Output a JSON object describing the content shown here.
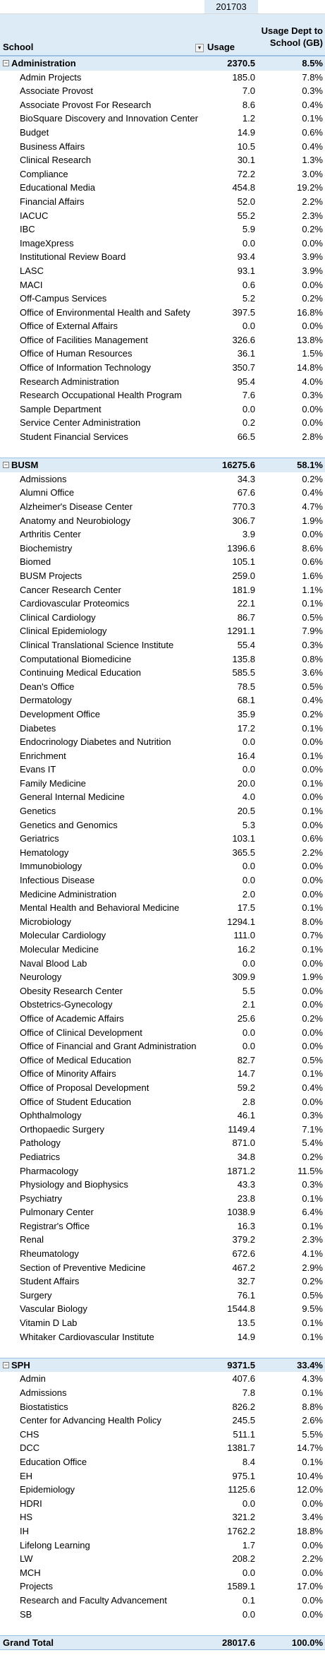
{
  "period": "201703",
  "header": {
    "school_label": "School",
    "usage_label": "Usage",
    "pct_label": "Usage Dept to School (GB)"
  },
  "departments": [
    {
      "name": "Administration",
      "usage": "2370.5",
      "pct": "8.5%",
      "items": [
        {
          "name": "Admin Projects",
          "usage": "185.0",
          "pct": "7.8%"
        },
        {
          "name": "Associate Provost",
          "usage": "7.0",
          "pct": "0.3%"
        },
        {
          "name": "Associate Provost For Research",
          "usage": "8.6",
          "pct": "0.4%"
        },
        {
          "name": "BioSquare Discovery and Innovation Center",
          "usage": "1.2",
          "pct": "0.1%"
        },
        {
          "name": "Budget",
          "usage": "14.9",
          "pct": "0.6%"
        },
        {
          "name": "Business Affairs",
          "usage": "10.5",
          "pct": "0.4%"
        },
        {
          "name": "Clinical Research",
          "usage": "30.1",
          "pct": "1.3%"
        },
        {
          "name": "Compliance",
          "usage": "72.2",
          "pct": "3.0%"
        },
        {
          "name": "Educational Media",
          "usage": "454.8",
          "pct": "19.2%"
        },
        {
          "name": "Financial Affairs",
          "usage": "52.0",
          "pct": "2.2%"
        },
        {
          "name": "IACUC",
          "usage": "55.2",
          "pct": "2.3%"
        },
        {
          "name": "IBC",
          "usage": "5.9",
          "pct": "0.2%"
        },
        {
          "name": "ImageXpress",
          "usage": "0.0",
          "pct": "0.0%"
        },
        {
          "name": "Institutional Review Board",
          "usage": "93.4",
          "pct": "3.9%"
        },
        {
          "name": "LASC",
          "usage": "93.1",
          "pct": "3.9%"
        },
        {
          "name": "MACI",
          "usage": "0.6",
          "pct": "0.0%"
        },
        {
          "name": "Off-Campus Services",
          "usage": "5.2",
          "pct": "0.2%"
        },
        {
          "name": "Office of Environmental Health and Safety",
          "usage": "397.5",
          "pct": "16.8%"
        },
        {
          "name": "Office of External Affairs",
          "usage": "0.0",
          "pct": "0.0%"
        },
        {
          "name": "Office of Facilities Management",
          "usage": "326.6",
          "pct": "13.8%"
        },
        {
          "name": "Office of Human Resources",
          "usage": "36.1",
          "pct": "1.5%"
        },
        {
          "name": "Office of Information Technology",
          "usage": "350.7",
          "pct": "14.8%"
        },
        {
          "name": "Research Administration",
          "usage": "95.4",
          "pct": "4.0%"
        },
        {
          "name": "Research Occupational Health Program",
          "usage": "7.6",
          "pct": "0.3%"
        },
        {
          "name": "Sample Department",
          "usage": "0.0",
          "pct": "0.0%"
        },
        {
          "name": "Service Center Administration",
          "usage": "0.2",
          "pct": "0.0%"
        },
        {
          "name": "Student Financial Services",
          "usage": "66.5",
          "pct": "2.8%"
        }
      ]
    },
    {
      "name": "BUSM",
      "usage": "16275.6",
      "pct": "58.1%",
      "items": [
        {
          "name": "Admissions",
          "usage": "34.3",
          "pct": "0.2%"
        },
        {
          "name": "Alumni Office",
          "usage": "67.6",
          "pct": "0.4%"
        },
        {
          "name": "Alzheimer's Disease Center",
          "usage": "770.3",
          "pct": "4.7%"
        },
        {
          "name": "Anatomy and Neurobiology",
          "usage": "306.7",
          "pct": "1.9%"
        },
        {
          "name": "Arthritis Center",
          "usage": "3.9",
          "pct": "0.0%"
        },
        {
          "name": "Biochemistry",
          "usage": "1396.6",
          "pct": "8.6%"
        },
        {
          "name": "Biomed",
          "usage": "105.1",
          "pct": "0.6%"
        },
        {
          "name": "BUSM Projects",
          "usage": "259.0",
          "pct": "1.6%"
        },
        {
          "name": "Cancer Research Center",
          "usage": "181.9",
          "pct": "1.1%"
        },
        {
          "name": "Cardiovascular Proteomics",
          "usage": "22.1",
          "pct": "0.1%"
        },
        {
          "name": "Clinical Cardiology",
          "usage": "86.7",
          "pct": "0.5%"
        },
        {
          "name": "Clinical Epidemiology",
          "usage": "1291.1",
          "pct": "7.9%"
        },
        {
          "name": "Clinical Translational Science Institute",
          "usage": "55.4",
          "pct": "0.3%"
        },
        {
          "name": "Computational Biomedicine",
          "usage": "135.8",
          "pct": "0.8%"
        },
        {
          "name": "Continuing Medical Education",
          "usage": "585.5",
          "pct": "3.6%"
        },
        {
          "name": "Dean's Office",
          "usage": "78.5",
          "pct": "0.5%"
        },
        {
          "name": "Dermatology",
          "usage": "68.1",
          "pct": "0.4%"
        },
        {
          "name": "Development Office",
          "usage": "35.9",
          "pct": "0.2%"
        },
        {
          "name": "Diabetes",
          "usage": "17.2",
          "pct": "0.1%"
        },
        {
          "name": "Endocrinology Diabetes and Nutrition",
          "usage": "0.0",
          "pct": "0.0%"
        },
        {
          "name": "Enrichment",
          "usage": "16.4",
          "pct": "0.1%"
        },
        {
          "name": "Evans IT",
          "usage": "0.0",
          "pct": "0.0%"
        },
        {
          "name": "Family Medicine",
          "usage": "20.0",
          "pct": "0.1%"
        },
        {
          "name": "General Internal Medicine",
          "usage": "4.0",
          "pct": "0.0%"
        },
        {
          "name": "Genetics",
          "usage": "20.5",
          "pct": "0.1%"
        },
        {
          "name": "Genetics and Genomics",
          "usage": "5.3",
          "pct": "0.0%"
        },
        {
          "name": "Geriatrics",
          "usage": "103.1",
          "pct": "0.6%"
        },
        {
          "name": "Hematology",
          "usage": "365.5",
          "pct": "2.2%"
        },
        {
          "name": "Immunobiology",
          "usage": "0.0",
          "pct": "0.0%"
        },
        {
          "name": "Infectious Disease",
          "usage": "0.0",
          "pct": "0.0%"
        },
        {
          "name": "Medicine Administration",
          "usage": "2.0",
          "pct": "0.0%"
        },
        {
          "name": "Mental Health and Behavioral Medicine",
          "usage": "17.5",
          "pct": "0.1%"
        },
        {
          "name": "Microbiology",
          "usage": "1294.1",
          "pct": "8.0%"
        },
        {
          "name": "Molecular Cardiology",
          "usage": "111.0",
          "pct": "0.7%"
        },
        {
          "name": "Molecular Medicine",
          "usage": "16.2",
          "pct": "0.1%"
        },
        {
          "name": "Naval Blood Lab",
          "usage": "0.0",
          "pct": "0.0%"
        },
        {
          "name": "Neurology",
          "usage": "309.9",
          "pct": "1.9%"
        },
        {
          "name": "Obesity Research Center",
          "usage": "5.5",
          "pct": "0.0%"
        },
        {
          "name": "Obstetrics-Gynecology",
          "usage": "2.1",
          "pct": "0.0%"
        },
        {
          "name": "Office of Academic Affairs",
          "usage": "25.6",
          "pct": "0.2%"
        },
        {
          "name": "Office of Clinical Development",
          "usage": "0.0",
          "pct": "0.0%"
        },
        {
          "name": "Office of Financial and Grant Administration",
          "usage": "0.0",
          "pct": "0.0%"
        },
        {
          "name": "Office of Medical Education",
          "usage": "82.7",
          "pct": "0.5%"
        },
        {
          "name": "Office of Minority Affairs",
          "usage": "14.7",
          "pct": "0.1%"
        },
        {
          "name": "Office of Proposal Development",
          "usage": "59.2",
          "pct": "0.4%"
        },
        {
          "name": "Office of Student Education",
          "usage": "2.8",
          "pct": "0.0%"
        },
        {
          "name": "Ophthalmology",
          "usage": "46.1",
          "pct": "0.3%"
        },
        {
          "name": "Orthopaedic Surgery",
          "usage": "1149.4",
          "pct": "7.1%"
        },
        {
          "name": "Pathology",
          "usage": "871.0",
          "pct": "5.4%"
        },
        {
          "name": "Pediatrics",
          "usage": "34.8",
          "pct": "0.2%"
        },
        {
          "name": "Pharmacology",
          "usage": "1871.2",
          "pct": "11.5%"
        },
        {
          "name": "Physiology and Biophysics",
          "usage": "43.3",
          "pct": "0.3%"
        },
        {
          "name": "Psychiatry",
          "usage": "23.8",
          "pct": "0.1%"
        },
        {
          "name": "Pulmonary Center",
          "usage": "1038.9",
          "pct": "6.4%"
        },
        {
          "name": "Registrar's Office",
          "usage": "16.3",
          "pct": "0.1%"
        },
        {
          "name": "Renal",
          "usage": "379.2",
          "pct": "2.3%"
        },
        {
          "name": "Rheumatology",
          "usage": "672.6",
          "pct": "4.1%"
        },
        {
          "name": "Section of Preventive Medicine",
          "usage": "467.2",
          "pct": "2.9%"
        },
        {
          "name": "Student Affairs",
          "usage": "32.7",
          "pct": "0.2%"
        },
        {
          "name": "Surgery",
          "usage": "76.1",
          "pct": "0.5%"
        },
        {
          "name": "Vascular Biology",
          "usage": "1544.8",
          "pct": "9.5%"
        },
        {
          "name": "Vitamin D Lab",
          "usage": "13.5",
          "pct": "0.1%"
        },
        {
          "name": "Whitaker Cardiovascular Institute",
          "usage": "14.9",
          "pct": "0.1%"
        }
      ]
    },
    {
      "name": "SPH",
      "usage": "9371.5",
      "pct": "33.4%",
      "items": [
        {
          "name": "Admin",
          "usage": "407.6",
          "pct": "4.3%"
        },
        {
          "name": "Admissions",
          "usage": "7.8",
          "pct": "0.1%"
        },
        {
          "name": "Biostatistics",
          "usage": "826.2",
          "pct": "8.8%"
        },
        {
          "name": "Center for Advancing Health Policy",
          "usage": "245.5",
          "pct": "2.6%"
        },
        {
          "name": "CHS",
          "usage": "511.1",
          "pct": "5.5%"
        },
        {
          "name": "DCC",
          "usage": "1381.7",
          "pct": "14.7%"
        },
        {
          "name": "Education Office",
          "usage": "8.4",
          "pct": "0.1%"
        },
        {
          "name": "EH",
          "usage": "975.1",
          "pct": "10.4%"
        },
        {
          "name": "Epidemiology",
          "usage": "1125.6",
          "pct": "12.0%"
        },
        {
          "name": "HDRI",
          "usage": "0.0",
          "pct": "0.0%"
        },
        {
          "name": "HS",
          "usage": "321.2",
          "pct": "3.4%"
        },
        {
          "name": "IH",
          "usage": "1762.2",
          "pct": "18.8%"
        },
        {
          "name": "Lifelong Learning",
          "usage": "1.7",
          "pct": "0.0%"
        },
        {
          "name": "LW",
          "usage": "208.2",
          "pct": "2.2%"
        },
        {
          "name": "MCH",
          "usage": "0.0",
          "pct": "0.0%"
        },
        {
          "name": "Projects",
          "usage": "1589.1",
          "pct": "17.0%"
        },
        {
          "name": "Research and Faculty Advancement",
          "usage": "0.1",
          "pct": "0.0%"
        },
        {
          "name": "SB",
          "usage": "0.0",
          "pct": "0.0%"
        }
      ]
    }
  ],
  "grand_total": {
    "label": "Grand Total",
    "usage": "28017.6",
    "pct": "100.0%"
  },
  "colors": {
    "header_fill": "#ddebf7",
    "header_border": "#9bc2e6"
  },
  "icons": {
    "collapse": "minus-box-icon",
    "filter": "filter-dropdown-icon"
  }
}
